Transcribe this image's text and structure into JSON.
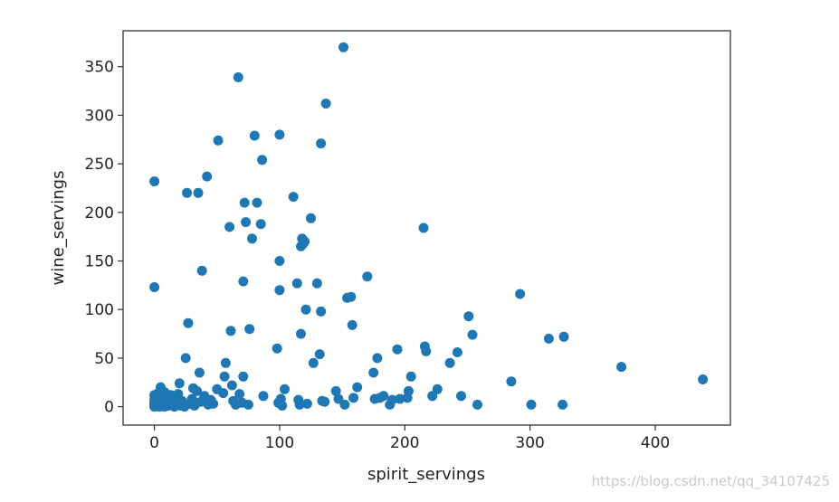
{
  "chart_data": {
    "type": "scatter",
    "xlabel": "spirit_servings",
    "ylabel": "wine_servings",
    "xlim": [
      -25,
      460
    ],
    "ylim": [
      -19,
      387
    ],
    "x_ticks": [
      0,
      100,
      200,
      300,
      400
    ],
    "y_ticks": [
      0,
      50,
      100,
      150,
      200,
      250,
      300,
      350
    ],
    "grid": false,
    "marker_color": "#1f77b4",
    "series": [
      {
        "points": [
          [
            0,
            0
          ],
          [
            0,
            2
          ],
          [
            0,
            5
          ],
          [
            0,
            8
          ],
          [
            0,
            12
          ],
          [
            0,
            3
          ],
          [
            0,
            1
          ],
          [
            0,
            232
          ],
          [
            0,
            123
          ],
          [
            1,
            2
          ],
          [
            2,
            7
          ],
          [
            2,
            10
          ],
          [
            3,
            1
          ],
          [
            3,
            14
          ],
          [
            4,
            0
          ],
          [
            4,
            5
          ],
          [
            5,
            20
          ],
          [
            5,
            3
          ],
          [
            6,
            1
          ],
          [
            6,
            10
          ],
          [
            7,
            4
          ],
          [
            8,
            0
          ],
          [
            8,
            15
          ],
          [
            9,
            3
          ],
          [
            10,
            9
          ],
          [
            11,
            1
          ],
          [
            12,
            5
          ],
          [
            13,
            12
          ],
          [
            14,
            2
          ],
          [
            15,
            7
          ],
          [
            16,
            0
          ],
          [
            17,
            10
          ],
          [
            18,
            3
          ],
          [
            19,
            13
          ],
          [
            20,
            24
          ],
          [
            21,
            1
          ],
          [
            22,
            6
          ],
          [
            24,
            0
          ],
          [
            25,
            50
          ],
          [
            26,
            220
          ],
          [
            27,
            86
          ],
          [
            28,
            3
          ],
          [
            30,
            8
          ],
          [
            31,
            19
          ],
          [
            32,
            1
          ],
          [
            34,
            16
          ],
          [
            35,
            220
          ],
          [
            36,
            35
          ],
          [
            37,
            5
          ],
          [
            38,
            140
          ],
          [
            40,
            11
          ],
          [
            42,
            237
          ],
          [
            43,
            2
          ],
          [
            45,
            7
          ],
          [
            47,
            3
          ],
          [
            50,
            18
          ],
          [
            51,
            274
          ],
          [
            55,
            14
          ],
          [
            56,
            31
          ],
          [
            57,
            45
          ],
          [
            60,
            185
          ],
          [
            61,
            78
          ],
          [
            62,
            22
          ],
          [
            63,
            6
          ],
          [
            65,
            2
          ],
          [
            67,
            339
          ],
          [
            68,
            13
          ],
          [
            70,
            4
          ],
          [
            71,
            31
          ],
          [
            71,
            129
          ],
          [
            72,
            210
          ],
          [
            73,
            190
          ],
          [
            75,
            2
          ],
          [
            76,
            80
          ],
          [
            78,
            173
          ],
          [
            80,
            279
          ],
          [
            82,
            210
          ],
          [
            85,
            188
          ],
          [
            86,
            254
          ],
          [
            87,
            11
          ],
          [
            98,
            60
          ],
          [
            99,
            4
          ],
          [
            100,
            280
          ],
          [
            100,
            150
          ],
          [
            100,
            120
          ],
          [
            101,
            8
          ],
          [
            102,
            1
          ],
          [
            104,
            18
          ],
          [
            111,
            216
          ],
          [
            114,
            127
          ],
          [
            115,
            7
          ],
          [
            116,
            2
          ],
          [
            117,
            165
          ],
          [
            117,
            75
          ],
          [
            118,
            173
          ],
          [
            119,
            168
          ],
          [
            120,
            170
          ],
          [
            121,
            100
          ],
          [
            122,
            3
          ],
          [
            125,
            194
          ],
          [
            127,
            45
          ],
          [
            130,
            127
          ],
          [
            132,
            54
          ],
          [
            133,
            271
          ],
          [
            133,
            98
          ],
          [
            134,
            6
          ],
          [
            136,
            5
          ],
          [
            137,
            312
          ],
          [
            145,
            16
          ],
          [
            147,
            8
          ],
          [
            151,
            370
          ],
          [
            152,
            2
          ],
          [
            154,
            112
          ],
          [
            157,
            113
          ],
          [
            158,
            84
          ],
          [
            159,
            9
          ],
          [
            162,
            20
          ],
          [
            170,
            134
          ],
          [
            175,
            35
          ],
          [
            176,
            8
          ],
          [
            178,
            50
          ],
          [
            180,
            9
          ],
          [
            183,
            11
          ],
          [
            188,
            2
          ],
          [
            190,
            7
          ],
          [
            194,
            59
          ],
          [
            196,
            8
          ],
          [
            202,
            9
          ],
          [
            203,
            16
          ],
          [
            205,
            31
          ],
          [
            215,
            184
          ],
          [
            216,
            62
          ],
          [
            217,
            57
          ],
          [
            222,
            11
          ],
          [
            226,
            18
          ],
          [
            236,
            45
          ],
          [
            242,
            56
          ],
          [
            245,
            11
          ],
          [
            251,
            93
          ],
          [
            254,
            74
          ],
          [
            258,
            2
          ],
          [
            285,
            26
          ],
          [
            292,
            116
          ],
          [
            301,
            2
          ],
          [
            315,
            70
          ],
          [
            326,
            2
          ],
          [
            327,
            72
          ],
          [
            373,
            41
          ],
          [
            438,
            28
          ]
        ]
      }
    ]
  },
  "watermark": "https://blog.csdn.net/qq_34107425"
}
